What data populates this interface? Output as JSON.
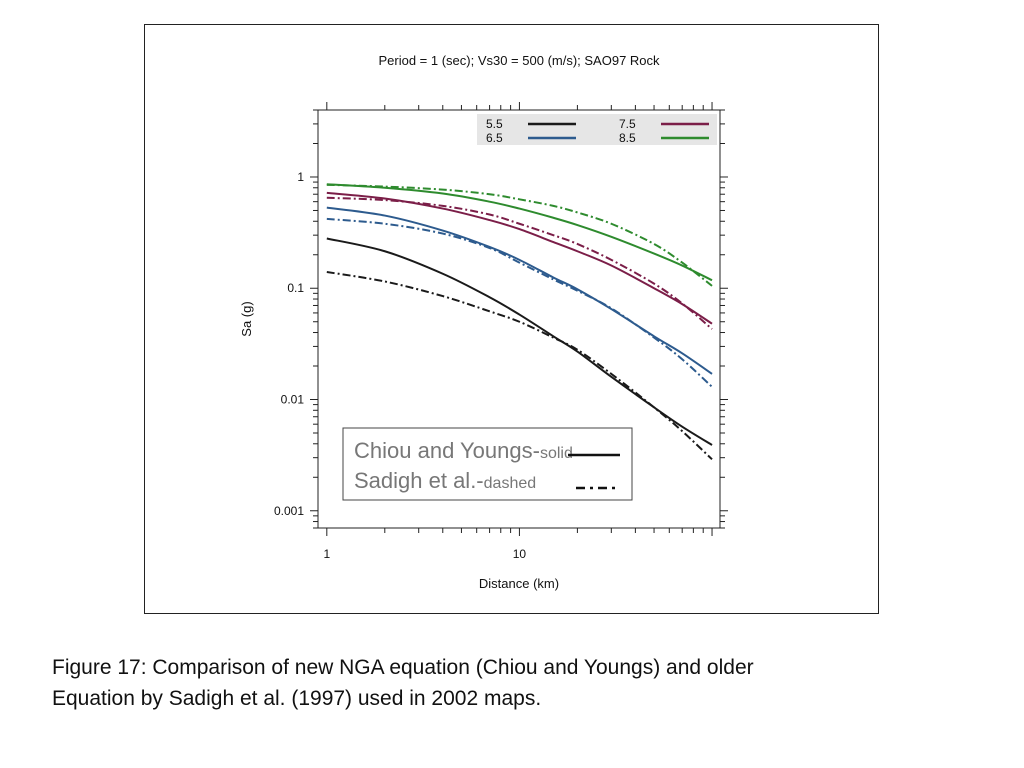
{
  "chart_data": {
    "type": "line",
    "title": "Period = 1 (sec); Vs30 = 500 (m/s); SAO97 Rock",
    "xlabel": "Distance (km)",
    "ylabel": "Sa (g)",
    "xscale": "log",
    "yscale": "log",
    "xlim": [
      0.9,
      110
    ],
    "ylim": [
      0.0007,
      4
    ],
    "xticks": [
      {
        "value": 1,
        "label": "1"
      },
      {
        "value": 10,
        "label": "10"
      }
    ],
    "yticks": [
      {
        "value": 1,
        "label": "1"
      },
      {
        "value": 0.1,
        "label": "0.1"
      },
      {
        "value": 0.01,
        "label": "0.01"
      },
      {
        "value": 0.001,
        "label": "0.001"
      }
    ],
    "legend_magnitude": {
      "placement": "top-right",
      "entries": [
        {
          "label": "5.5",
          "color": "#1a1a1a"
        },
        {
          "label": "7.5",
          "color": "#7b1e48"
        },
        {
          "label": "6.5",
          "color": "#2d5b8e"
        },
        {
          "label": "8.5",
          "color": "#2e8b2e"
        }
      ]
    },
    "legend_model": {
      "placement": "bottom-left",
      "entries": [
        {
          "label": "Chiou and Youngs-",
          "sub": "solid",
          "dash": "solid"
        },
        {
          "label": "Sadigh et al.-",
          "sub": "dashed",
          "dash": "dashdot"
        }
      ]
    },
    "series": [
      {
        "name": "5.5",
        "model": "Chiou and Youngs",
        "style": "solid",
        "color": "#1a1a1a",
        "x": [
          1,
          2,
          4,
          7,
          10,
          15,
          20,
          30,
          50,
          70,
          100
        ],
        "y": [
          0.28,
          0.215,
          0.135,
          0.083,
          0.058,
          0.037,
          0.027,
          0.016,
          0.0085,
          0.0057,
          0.0039
        ]
      },
      {
        "name": "6.5",
        "model": "Chiou and Youngs",
        "style": "solid",
        "color": "#2d5b8e",
        "x": [
          1,
          2,
          4,
          7,
          10,
          15,
          20,
          30,
          50,
          70,
          100
        ],
        "y": [
          0.53,
          0.45,
          0.33,
          0.235,
          0.18,
          0.125,
          0.098,
          0.065,
          0.037,
          0.026,
          0.017
        ]
      },
      {
        "name": "7.5",
        "model": "Chiou and Youngs",
        "style": "solid",
        "color": "#7b1e48",
        "x": [
          1,
          2,
          4,
          7,
          10,
          15,
          20,
          30,
          50,
          70,
          100
        ],
        "y": [
          0.72,
          0.64,
          0.52,
          0.41,
          0.34,
          0.26,
          0.215,
          0.16,
          0.1,
          0.072,
          0.048
        ]
      },
      {
        "name": "8.5",
        "model": "Chiou and Youngs",
        "style": "solid",
        "color": "#2e8b2e",
        "x": [
          1,
          2,
          4,
          7,
          10,
          15,
          20,
          30,
          50,
          70,
          100
        ],
        "y": [
          0.86,
          0.8,
          0.71,
          0.6,
          0.52,
          0.43,
          0.37,
          0.29,
          0.205,
          0.16,
          0.118
        ]
      },
      {
        "name": "5.5",
        "model": "Sadigh et al.",
        "style": "dashed",
        "color": "#1a1a1a",
        "x": [
          1,
          2,
          4,
          7,
          10,
          15,
          20,
          30,
          50,
          70,
          100
        ],
        "y": [
          0.14,
          0.115,
          0.085,
          0.062,
          0.05,
          0.036,
          0.028,
          0.017,
          0.0085,
          0.0052,
          0.0029
        ]
      },
      {
        "name": "6.5",
        "model": "Sadigh et al.",
        "style": "dashed",
        "color": "#2d5b8e",
        "x": [
          1,
          2,
          4,
          7,
          10,
          15,
          20,
          30,
          50,
          70,
          100
        ],
        "y": [
          0.42,
          0.38,
          0.31,
          0.23,
          0.17,
          0.12,
          0.095,
          0.066,
          0.036,
          0.023,
          0.013
        ]
      },
      {
        "name": "7.5",
        "model": "Sadigh et al.",
        "style": "dashed",
        "color": "#7b1e48",
        "x": [
          1,
          2,
          4,
          7,
          10,
          15,
          20,
          30,
          50,
          70,
          100
        ],
        "y": [
          0.65,
          0.62,
          0.55,
          0.46,
          0.38,
          0.3,
          0.25,
          0.18,
          0.11,
          0.073,
          0.043
        ]
      },
      {
        "name": "8.5",
        "model": "Sadigh et al.",
        "style": "dashed",
        "color": "#2e8b2e",
        "x": [
          1,
          2,
          4,
          7,
          10,
          15,
          20,
          30,
          50,
          70,
          100
        ],
        "y": [
          0.85,
          0.82,
          0.77,
          0.7,
          0.63,
          0.55,
          0.48,
          0.38,
          0.25,
          0.17,
          0.105
        ]
      }
    ]
  },
  "caption": {
    "line1": "Figure 17: Comparison of new NGA equation (Chiou and Youngs) and older",
    "line2": "Equation by Sadigh et al. (1997) used in 2002 maps."
  }
}
